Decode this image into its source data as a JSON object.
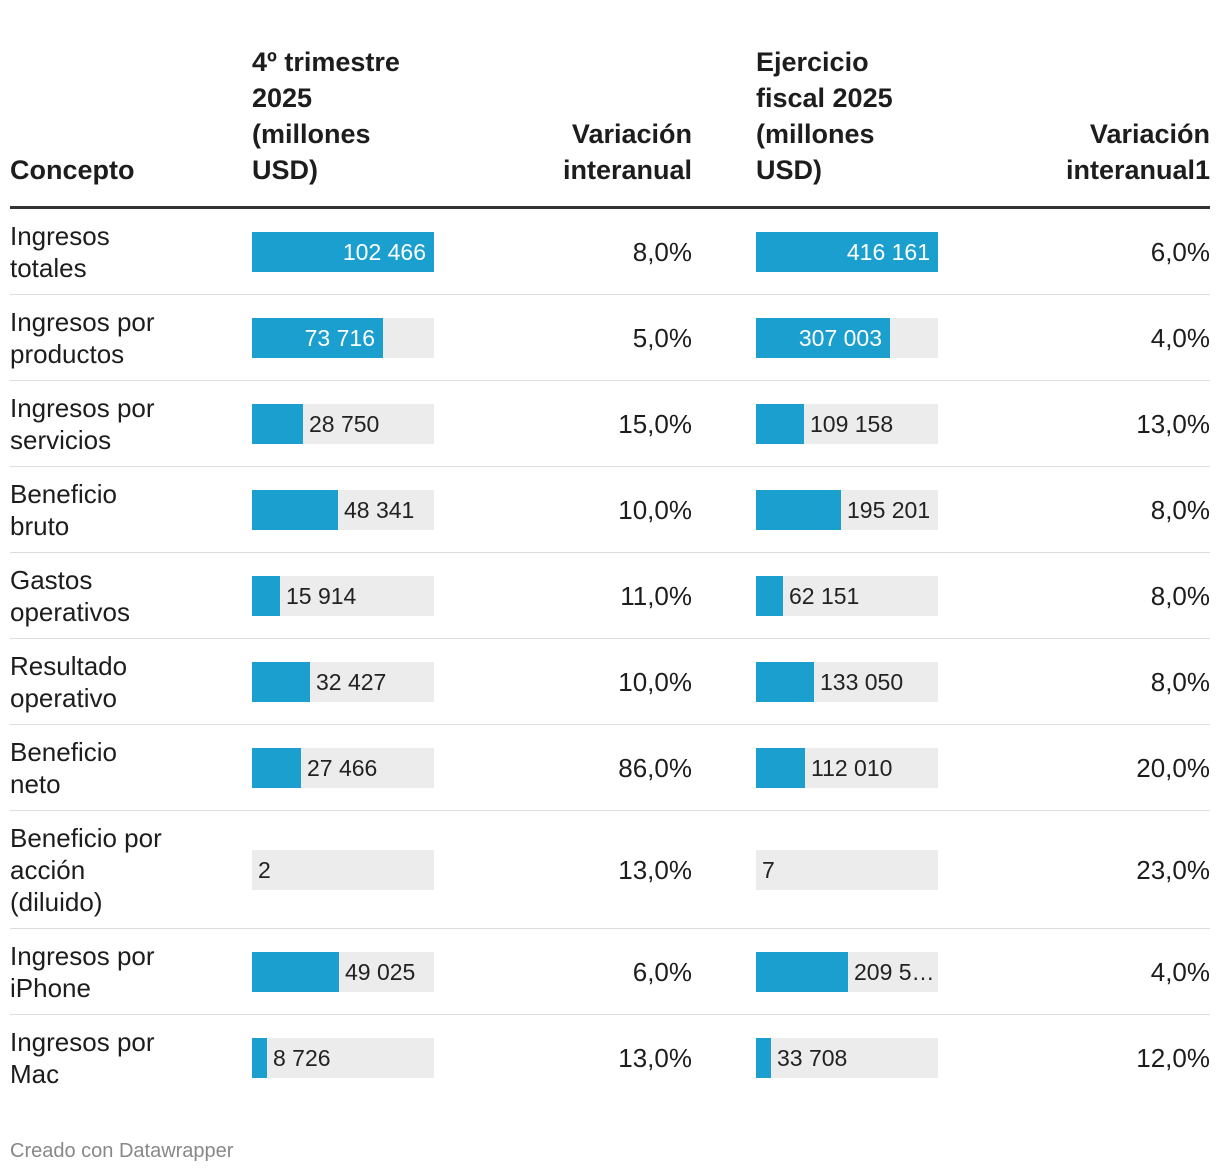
{
  "chart_data": {
    "type": "table",
    "columns": {
      "concept": "Concepto",
      "q4": "4º trimestre\n2025\n(millones\nUSD)",
      "yoy_q4": "Variación\ninteranual",
      "fy": "Ejercicio\nfiscal 2025\n(millones\nUSD)",
      "yoy_fy": "Variación\ninteranual1"
    },
    "scale": {
      "q4_max": 102466,
      "fy_max": 416161
    },
    "rows": [
      {
        "concept": "Ingresos\ntotales",
        "q4_value": 102466,
        "q4_label": "102 466",
        "yoy_q4": "8,0%",
        "fy_value": 416161,
        "fy_label": "416 161",
        "yoy_fy": "6,0%"
      },
      {
        "concept": "Ingresos por\nproductos",
        "q4_value": 73716,
        "q4_label": "73 716",
        "yoy_q4": "5,0%",
        "fy_value": 307003,
        "fy_label": "307 003",
        "yoy_fy": "4,0%"
      },
      {
        "concept": "Ingresos por\nservicios",
        "q4_value": 28750,
        "q4_label": "28 750",
        "yoy_q4": "15,0%",
        "fy_value": 109158,
        "fy_label": "109 158",
        "yoy_fy": "13,0%"
      },
      {
        "concept": "Beneficio\nbruto",
        "q4_value": 48341,
        "q4_label": "48 341",
        "yoy_q4": "10,0%",
        "fy_value": 195201,
        "fy_label": "195 201",
        "yoy_fy": "8,0%"
      },
      {
        "concept": "Gastos\noperativos",
        "q4_value": 15914,
        "q4_label": "15 914",
        "yoy_q4": "11,0%",
        "fy_value": 62151,
        "fy_label": "62 151",
        "yoy_fy": "8,0%"
      },
      {
        "concept": "Resultado\noperativo",
        "q4_value": 32427,
        "q4_label": "32 427",
        "yoy_q4": "10,0%",
        "fy_value": 133050,
        "fy_label": "133 050",
        "yoy_fy": "8,0%"
      },
      {
        "concept": "Beneficio\nneto",
        "q4_value": 27466,
        "q4_label": "27 466",
        "yoy_q4": "86,0%",
        "fy_value": 112010,
        "fy_label": "112 010",
        "yoy_fy": "20,0%"
      },
      {
        "concept": "Beneficio por\nacción\n(diluido)",
        "q4_value": 2,
        "q4_label": "2",
        "yoy_q4": "13,0%",
        "fy_value": 7,
        "fy_label": "7",
        "yoy_fy": "23,0%"
      },
      {
        "concept": "Ingresos por\niPhone",
        "q4_value": 49025,
        "q4_label": "49 025",
        "yoy_q4": "6,0%",
        "fy_value": 209586,
        "fy_label": "209 5…",
        "yoy_fy": "4,0%"
      },
      {
        "concept": "Ingresos por\nMac",
        "q4_value": 8726,
        "q4_label": "8 726",
        "yoy_q4": "13,0%",
        "fy_value": 33708,
        "fy_label": "33 708",
        "yoy_fy": "12,0%"
      }
    ],
    "colors": {
      "bar": "#1a9fcf",
      "track": "#ececec"
    }
  },
  "footer": {
    "credit": "Creado con Datawrapper"
  }
}
